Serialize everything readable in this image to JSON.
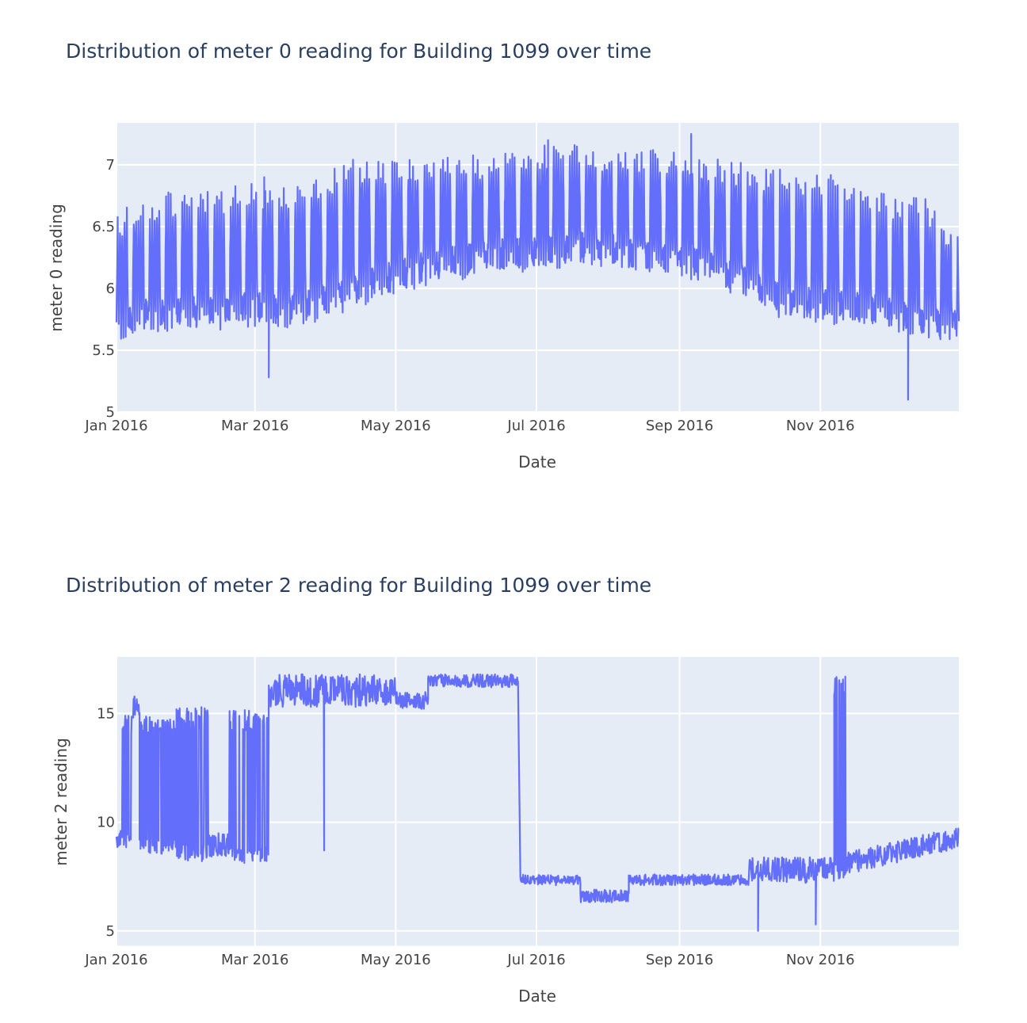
{
  "chart_data": [
    {
      "type": "line",
      "title": "Distribution of meter 0 reading for Building 1099 over time",
      "xlabel": "Date",
      "ylabel": "meter 0 reading",
      "x_range": [
        "2016-01-01",
        "2016-12-31"
      ],
      "ylim": [
        5,
        7.34
      ],
      "x_ticks": [
        "Jan 2016",
        "Mar 2016",
        "May 2016",
        "Jul 2016",
        "Sep 2016",
        "Nov 2016"
      ],
      "x_tick_dates": [
        "2016-01-01",
        "2016-03-01",
        "2016-05-01",
        "2016-07-01",
        "2016-09-01",
        "2016-11-01"
      ],
      "y_ticks": [
        "5",
        "5.5",
        "6",
        "6.5",
        "7"
      ],
      "y_tick_values": [
        5,
        5.5,
        6,
        6.5,
        7
      ],
      "line_color": "#636efa",
      "background": "#e5ecf6",
      "grid": true,
      "series": [
        {
          "envelope": {
            "dates": [
              "2016-01-01",
              "2016-01-15",
              "2016-02-01",
              "2016-02-15",
              "2016-03-01",
              "2016-03-15",
              "2016-04-01",
              "2016-04-15",
              "2016-05-01",
              "2016-05-15",
              "2016-06-01",
              "2016-06-15",
              "2016-07-01",
              "2016-07-15",
              "2016-08-01",
              "2016-08-15",
              "2016-09-01",
              "2016-09-15",
              "2016-10-01",
              "2016-10-15",
              "2016-11-01",
              "2016-11-15",
              "2016-12-01",
              "2016-12-15",
              "2016-12-31"
            ],
            "low": [
              5.6,
              5.65,
              5.65,
              5.65,
              5.7,
              5.65,
              5.75,
              5.85,
              5.95,
              6.05,
              6.1,
              6.15,
              6.15,
              6.2,
              6.2,
              6.15,
              6.1,
              6.05,
              5.9,
              5.75,
              5.7,
              5.7,
              5.65,
              5.6,
              5.6
            ],
            "high": [
              6.5,
              6.65,
              6.7,
              6.7,
              6.75,
              6.75,
              6.85,
              6.95,
              6.95,
              6.95,
              6.98,
              7.0,
              7.05,
              7.1,
              7.05,
              7.0,
              7.05,
              6.95,
              6.9,
              6.85,
              6.85,
              6.75,
              6.65,
              6.65,
              6.3
            ]
          },
          "dips": [
            {
              "date": "2016-03-07",
              "value": 5.28
            },
            {
              "date": "2016-12-09",
              "value": 5.1
            }
          ],
          "peaks": [
            {
              "date": "2016-07-06",
              "value": 7.2
            },
            {
              "date": "2016-09-06",
              "value": 7.25
            },
            {
              "date": "2016-05-07",
              "value": 7.04
            },
            {
              "date": "2016-03-05",
              "value": 6.9
            }
          ]
        }
      ]
    },
    {
      "type": "line",
      "title": "Distribution of meter 2 reading for Building 1099 over time",
      "xlabel": "Date",
      "ylabel": "meter 2 reading",
      "x_range": [
        "2016-01-01",
        "2016-12-31"
      ],
      "ylim": [
        4.3,
        17.6
      ],
      "x_ticks": [
        "Jan 2016",
        "Mar 2016",
        "May 2016",
        "Jul 2016",
        "Sep 2016",
        "Nov 2016"
      ],
      "x_tick_dates": [
        "2016-01-01",
        "2016-03-01",
        "2016-05-01",
        "2016-07-01",
        "2016-09-01",
        "2016-11-01"
      ],
      "y_ticks": [
        "5",
        "10",
        "15"
      ],
      "y_tick_values": [
        5,
        10,
        15
      ],
      "line_color": "#636efa",
      "background": "#e5ecf6",
      "grid": true,
      "series": [
        {
          "segments": [
            {
              "from": "2016-01-01",
              "to": "2016-01-08",
              "low": 8.8,
              "high": 15.0,
              "style": "osc"
            },
            {
              "from": "2016-01-08",
              "to": "2016-01-11",
              "low": 14.8,
              "high": 15.8,
              "style": "noise"
            },
            {
              "from": "2016-01-11",
              "to": "2016-01-27",
              "low": 8.5,
              "high": 14.9,
              "style": "osc"
            },
            {
              "from": "2016-01-27",
              "to": "2016-02-10",
              "low": 8.2,
              "high": 15.3,
              "style": "osc"
            },
            {
              "from": "2016-02-10",
              "to": "2016-02-19",
              "low": 8.4,
              "high": 9.5,
              "style": "noise"
            },
            {
              "from": "2016-02-19",
              "to": "2016-03-07",
              "low": 8.1,
              "high": 15.2,
              "style": "osc"
            },
            {
              "from": "2016-03-07",
              "to": "2016-05-01",
              "low": 15.3,
              "high": 16.8,
              "style": "noise"
            },
            {
              "from": "2016-05-01",
              "to": "2016-05-15",
              "low": 15.2,
              "high": 16.0,
              "style": "noise"
            },
            {
              "from": "2016-05-15",
              "to": "2016-06-23",
              "low": 16.2,
              "high": 16.8,
              "style": "noise"
            },
            {
              "from": "2016-06-24",
              "to": "2016-07-20",
              "low": 7.1,
              "high": 7.6,
              "style": "noise"
            },
            {
              "from": "2016-07-20",
              "to": "2016-08-10",
              "low": 6.3,
              "high": 6.9,
              "style": "noise"
            },
            {
              "from": "2016-08-10",
              "to": "2016-10-01",
              "low": 7.1,
              "high": 7.6,
              "style": "noise"
            },
            {
              "from": "2016-10-01",
              "to": "2016-11-07",
              "low": 7.2,
              "high": 8.4,
              "style": "noise"
            },
            {
              "from": "2016-11-07",
              "to": "2016-11-12",
              "low": 7.4,
              "high": 16.8,
              "style": "osc"
            },
            {
              "from": "2016-11-12",
              "to": "2016-12-31",
              "low": 7.5,
              "high": 9.5,
              "style": "ramp"
            }
          ],
          "spikes": [
            {
              "date": "2016-03-31",
              "value": 8.7
            },
            {
              "date": "2016-10-05",
              "value": 5.0
            },
            {
              "date": "2016-10-30",
              "value": 5.3
            }
          ]
        }
      ]
    }
  ]
}
